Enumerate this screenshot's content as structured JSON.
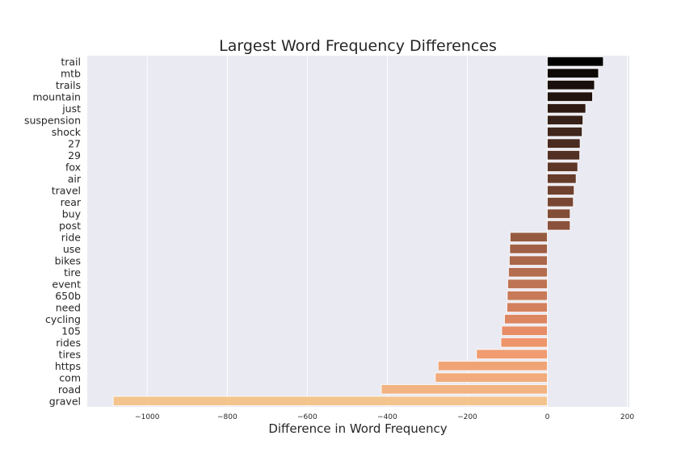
{
  "chart_data": {
    "type": "bar",
    "orientation": "horizontal",
    "title": "Largest Word Frequency Differences",
    "xlabel": "Difference in Word Frequency",
    "ylabel": "",
    "xlim": [
      -1150,
      205
    ],
    "xticks": [
      -1000,
      -800,
      -600,
      -400,
      -200,
      0,
      200
    ],
    "xtick_labels": [
      "−1000",
      "−800",
      "−600",
      "−400",
      "−200",
      "0",
      "200"
    ],
    "grid": true,
    "background": "#eaeaf2",
    "categories": [
      "trail",
      "mtb",
      "trails",
      "mountain",
      "just",
      "suspension",
      "shock",
      "27",
      "29",
      "fox",
      "air",
      "travel",
      "rear",
      "buy",
      "post",
      "ride",
      "use",
      "bikes",
      "tire",
      "event",
      "650b",
      "need",
      "cycling",
      "105",
      "rides",
      "tires",
      "https",
      "com",
      "road",
      "gravel"
    ],
    "values": [
      140,
      128,
      118,
      113,
      96,
      89,
      87,
      82,
      81,
      76,
      72,
      67,
      65,
      57,
      57,
      -93,
      -94,
      -95,
      -97,
      -99,
      -100,
      -101,
      -107,
      -114,
      -116,
      -177,
      -273,
      -280,
      -415,
      -1085
    ],
    "colors": [
      "#000000",
      "#0e0806",
      "#1a0f0a",
      "#22140e",
      "#2e1a12",
      "#372017",
      "#40261b",
      "#4a2b1f",
      "#523023",
      "#5c3627",
      "#663c2b",
      "#6f412f",
      "#784733",
      "#824d37",
      "#8b523b",
      "#965a40",
      "#a06045",
      "#aa674a",
      "#b46d4f",
      "#be7454",
      "#c87a58",
      "#d2805d",
      "#dc8762",
      "#e68d67",
      "#ed956b",
      "#f09c70",
      "#f0a476",
      "#f1ab7c",
      "#f2b382",
      "#f3c48d"
    ]
  }
}
